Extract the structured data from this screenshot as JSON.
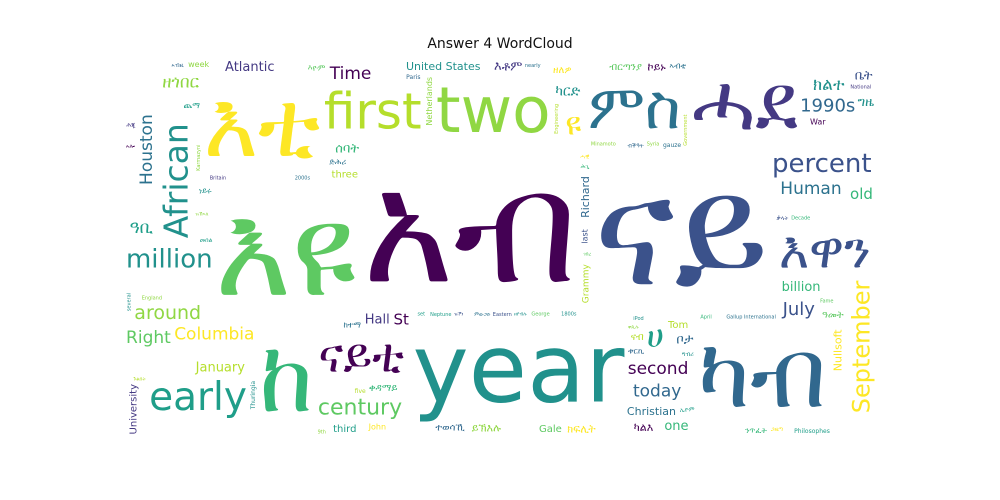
{
  "chart_data": {
    "type": "wordcloud",
    "title": "Answer 4 WordCloud",
    "colors": [
      "#440154",
      "#3b528b",
      "#21918c",
      "#5ec962",
      "#fde725",
      "#31688e",
      "#35b779",
      "#90d743",
      "#443983",
      "#2c728e",
      "#1f9e89",
      "#b5de2b"
    ],
    "words": [
      {
        "text": "አብ",
        "weight": 100,
        "vertical": false
      },
      {
        "text": "ናይ",
        "weight": 98,
        "vertical": false
      },
      {
        "text": "year",
        "weight": 80,
        "vertical": false
      },
      {
        "text": "እዩ",
        "weight": 82,
        "vertical": false
      },
      {
        "text": "እቲ",
        "weight": 78,
        "vertical": false
      },
      {
        "text": "ካብ",
        "weight": 60,
        "vertical": false
      },
      {
        "text": "ከ",
        "weight": 62,
        "vertical": false
      },
      {
        "text": "two",
        "weight": 52,
        "vertical": false
      },
      {
        "text": "ሓደ",
        "weight": 48,
        "vertical": false
      },
      {
        "text": "ምስ",
        "weight": 50,
        "vertical": false
      },
      {
        "text": "early",
        "weight": 42,
        "vertical": false
      },
      {
        "text": "first",
        "weight": 40,
        "vertical": false
      },
      {
        "text": "ናይቲ",
        "weight": 38,
        "vertical": false
      },
      {
        "text": "እዋን",
        "weight": 30,
        "vertical": false
      },
      {
        "text": "United States",
        "weight": 26,
        "vertical": false
      },
      {
        "text": "century",
        "weight": 22,
        "vertical": false
      },
      {
        "text": "Columbia",
        "weight": 16,
        "vertical": false
      },
      {
        "text": "1990s",
        "weight": 17,
        "vertical": false
      },
      {
        "text": "old",
        "weight": 14,
        "vertical": false
      },
      {
        "text": "around",
        "weight": 18,
        "vertical": false
      },
      {
        "text": "Hall",
        "weight": 15,
        "vertical": false
      },
      {
        "text": "Houston",
        "weight": 16,
        "vertical": true
      },
      {
        "text": "ጨማ",
        "weight": 12,
        "vertical": false
      },
      {
        "text": "January",
        "weight": 16,
        "vertical": false
      },
      {
        "text": "second",
        "weight": 16,
        "vertical": false
      },
      {
        "text": "percent",
        "weight": 19,
        "vertical": false
      },
      {
        "text": "African",
        "weight": 18,
        "vertical": true
      },
      {
        "text": "Gale",
        "weight": 15,
        "vertical": false
      },
      {
        "text": "Nullsoft",
        "weight": 14,
        "vertical": true
      },
      {
        "text": "today",
        "weight": 16,
        "vertical": false
      },
      {
        "text": "billion",
        "weight": 15,
        "vertical": false
      },
      {
        "text": "Netherlands",
        "weight": 13,
        "vertical": true
      },
      {
        "text": "University",
        "weight": 15,
        "vertical": true
      },
      {
        "text": "Human",
        "weight": 16,
        "vertical": false
      },
      {
        "text": "Philosophes",
        "weight": 11,
        "vertical": false
      },
      {
        "text": "Tom",
        "weight": 15,
        "vertical": false
      },
      {
        "text": "Time",
        "weight": 16,
        "vertical": false
      },
      {
        "text": "July",
        "weight": 17,
        "vertical": false
      },
      {
        "text": "million",
        "weight": 19,
        "vertical": false
      },
      {
        "text": "Right",
        "weight": 16,
        "vertical": false
      },
      {
        "text": "September",
        "weight": 17,
        "vertical": true
      },
      {
        "text": "Richard",
        "weight": 14,
        "vertical": true
      },
      {
        "text": "one",
        "weight": 15,
        "vertical": false
      },
      {
        "text": "week",
        "weight": 15,
        "vertical": false
      },
      {
        "text": "Atlantic",
        "weight": 15,
        "vertical": false
      },
      {
        "text": "Christian",
        "weight": 18,
        "vertical": false
      },
      {
        "text": "third",
        "weight": 15,
        "vertical": false
      },
      {
        "text": "three",
        "weight": 16,
        "vertical": false
      },
      {
        "text": "St",
        "weight": 14,
        "vertical": false
      },
      {
        "text": "last",
        "weight": 12,
        "vertical": true
      },
      {
        "text": "Leningrad",
        "weight": 9,
        "vertical": false
      },
      {
        "text": "George",
        "weight": 9,
        "vertical": false
      },
      {
        "text": "Convention",
        "weight": 11,
        "vertical": false
      },
      {
        "text": "Paris",
        "weight": 11,
        "vertical": false
      },
      {
        "text": "Tuvaluans",
        "weight": 11,
        "vertical": false
      },
      {
        "text": "Minamoto",
        "weight": 10,
        "vertical": false
      },
      {
        "text": "Adidas",
        "weight": 10,
        "vertical": false
      },
      {
        "text": "nearly",
        "weight": 10,
        "vertical": false
      },
      {
        "text": "Europe",
        "weight": 10,
        "vertical": false
      },
      {
        "text": "Grammy",
        "weight": 10,
        "vertical": true
      },
      {
        "text": "Whitehead",
        "weight": 9,
        "vertical": false
      },
      {
        "text": "Eastern",
        "weight": 10,
        "vertical": false
      },
      {
        "text": "1800s",
        "weight": 10,
        "vertical": false
      },
      {
        "text": "Fame",
        "weight": 10,
        "vertical": false
      },
      {
        "text": "John",
        "weight": 9,
        "vertical": false
      },
      {
        "text": "antenna",
        "weight": 9,
        "vertical": false
      },
      {
        "text": "Decade",
        "weight": 9,
        "vertical": false
      },
      {
        "text": "Syria",
        "weight": 10,
        "vertical": false
      },
      {
        "text": "scagliola",
        "weight": 8,
        "vertical": false
      },
      {
        "text": "gauze",
        "weight": 9,
        "vertical": false
      },
      {
        "text": "Neptune",
        "weight": 9,
        "vertical": false
      },
      {
        "text": "Government",
        "weight": 7,
        "vertical": true
      },
      {
        "text": "organization",
        "weight": 8,
        "vertical": false
      },
      {
        "text": "Conkling",
        "weight": 8,
        "vertical": false
      },
      {
        "text": "Thuringia",
        "weight": 9,
        "vertical": true
      },
      {
        "text": "Louisiana",
        "weight": 7,
        "vertical": false
      },
      {
        "text": "Hanks",
        "weight": 8,
        "vertical": false
      },
      {
        "text": "School",
        "weight": 7,
        "vertical": false
      },
      {
        "text": "April",
        "weight": 8,
        "vertical": false
      },
      {
        "text": "9th",
        "weight": 8,
        "vertical": false
      },
      {
        "text": "National",
        "weight": 8,
        "vertical": false
      },
      {
        "text": "2000s",
        "weight": 8,
        "vertical": false
      },
      {
        "text": "four",
        "weight": 7,
        "vertical": false
      },
      {
        "text": "five",
        "weight": 8,
        "vertical": false
      },
      {
        "text": "War",
        "weight": 8,
        "vertical": false
      },
      {
        "text": "end",
        "weight": 8,
        "vertical": false
      },
      {
        "text": "iPod",
        "weight": 8,
        "vertical": false
      },
      {
        "text": "predation",
        "weight": 7,
        "vertical": true
      },
      {
        "text": "david pa",
        "weight": 6,
        "vertical": false
      },
      {
        "text": "Bertrand Delanoë",
        "weight": 5,
        "vertical": false
      },
      {
        "text": "Lani Guinier",
        "weight": 5,
        "vertical": false
      },
      {
        "text": "Karmazyni",
        "weight": 6,
        "vertical": true
      },
      {
        "text": "19th",
        "weight": 7,
        "vertical": true
      },
      {
        "text": "Gallup International",
        "weight": 5,
        "vertical": false
      },
      {
        "text": "Zakaria Moheddin",
        "weight": 5,
        "vertical": true
      },
      {
        "text": "Engineering",
        "weight": 5,
        "vertical": true
      },
      {
        "text": "Raphael Lemkin",
        "weight": 5,
        "vertical": false
      },
      {
        "text": "March",
        "weight": 6,
        "vertical": false
      },
      {
        "text": "several",
        "weight": 6,
        "vertical": true
      },
      {
        "text": "months",
        "weight": 6,
        "vertical": false
      },
      {
        "text": "Twenty",
        "weight": 6,
        "vertical": false
      },
      {
        "text": "Underpinning",
        "weight": 6,
        "vertical": false
      },
      {
        "text": "Soopoolitse",
        "weight": 6,
        "vertical": false
      },
      {
        "text": "England",
        "weight": 6,
        "vertical": false
      },
      {
        "text": "Britain",
        "weight": 5,
        "vertical": false
      },
      {
        "text": "morning",
        "weight": 5,
        "vertical": false
      },
      {
        "text": "set",
        "weight": 5,
        "vertical": false
      },
      {
        "text": "Os",
        "weight": 6,
        "vertical": false
      },
      {
        "text": "18th",
        "weight": 5,
        "vertical": false
      },
      {
        "text": "FSN",
        "weight": 6,
        "vertical": false
      },
      {
        "text": "ክልተ",
        "weight": 16,
        "vertical": false
      },
      {
        "text": "ብርጣንያ",
        "weight": 15,
        "vertical": false
      },
      {
        "text": "ዘለዎ",
        "weight": 15,
        "vertical": false
      },
      {
        "text": "ተወሳኺ",
        "weight": 16,
        "vertical": false
      },
      {
        "text": "ቀዳማይ",
        "weight": 15,
        "vertical": false
      },
      {
        "text": "ዘጎበር",
        "weight": 15,
        "vertical": false
      },
      {
        "text": "ከምኡውን",
        "weight": 15,
        "vertical": false
      },
      {
        "text": "ድሕሪ",
        "weight": 14,
        "vertical": false
      },
      {
        "text": "ዓቢ",
        "weight": 16,
        "vertical": false
      },
      {
        "text": "ቻይና",
        "weight": 14,
        "vertical": false
      },
      {
        "text": "ካልእ",
        "weight": 14,
        "vertical": false
      },
      {
        "text": "ቤት",
        "weight": 15,
        "vertical": false
      },
      {
        "text": "ግዜ",
        "weight": 15,
        "vertical": false
      },
      {
        "text": "ዓመት",
        "weight": 15,
        "vertical": false
      },
      {
        "text": "ዩ",
        "weight": 17,
        "vertical": false
      },
      {
        "text": "ቦታ",
        "weight": 16,
        "vertical": false
      },
      {
        "text": "ሰባት",
        "weight": 15,
        "vertical": false
      },
      {
        "text": "ይኽእሉ",
        "weight": 14,
        "vertical": false
      },
      {
        "text": "እቶም",
        "weight": 16,
        "vertical": false
      },
      {
        "text": "ከተማ",
        "weight": 12,
        "vertical": false
      },
      {
        "text": "ሀ",
        "weight": 18,
        "vertical": false
      },
      {
        "text": "ናብ",
        "weight": 15,
        "vertical": false
      },
      {
        "text": "ኮይኑ",
        "weight": 14,
        "vertical": false
      },
      {
        "text": "ቃላት",
        "weight": 14,
        "vertical": false
      },
      {
        "text": "ነይሩ",
        "weight": 14,
        "vertical": false
      },
      {
        "text": "እዮም",
        "weight": 14,
        "vertical": false
      },
      {
        "text": "ክፍሊት",
        "weight": 14,
        "vertical": false
      },
      {
        "text": "ብቕዓት",
        "weight": 9,
        "vertical": false
      },
      {
        "text": "ንጥፈት",
        "weight": 9,
        "vertical": false
      },
      {
        "text": "ዘርዕ",
        "weight": 8,
        "vertical": false
      },
      {
        "text": "ምምስራት",
        "weight": 8,
        "vertical": false
      },
      {
        "text": "ኣብቲ",
        "weight": 9,
        "vertical": false
      },
      {
        "text": "መበል",
        "weight": 9,
        "vertical": false
      },
      {
        "text": "ምእንቲ",
        "weight": 9,
        "vertical": false
      },
      {
        "text": "ኣሎ",
        "weight": 8,
        "vertical": false
      },
      {
        "text": "ዝኾነ",
        "weight": 8,
        "vertical": false
      },
      {
        "text": "ካርድ",
        "weight": 8,
        "vertical": false
      },
      {
        "text": "ገበረ",
        "weight": 8,
        "vertical": false
      },
      {
        "text": "ሓዊ",
        "weight": 8,
        "vertical": false
      },
      {
        "text": "ቱርኪ",
        "weight": 9,
        "vertical": false
      },
      {
        "text": "ትሕቲ",
        "weight": 8,
        "vertical": false
      },
      {
        "text": "ዝኸኣለ",
        "weight": 7,
        "vertical": false
      },
      {
        "text": "ምዕራብ",
        "weight": 8,
        "vertical": false
      },
      {
        "text": "ምውጋድ",
        "weight": 8,
        "vertical": false
      },
      {
        "text": "ኣቋቋመ",
        "weight": 8,
        "vertical": false
      },
      {
        "text": "ጉልበት",
        "weight": 8,
        "vertical": false
      },
      {
        "text": "ዳግማይ",
        "weight": 8,
        "vertical": false
      },
      {
        "text": "ፍልጠት",
        "weight": 8,
        "vertical": false
      },
      {
        "text": "ዘየብሉ",
        "weight": 8,
        "vertical": false
      },
      {
        "text": "ውሽጢ",
        "weight": 8,
        "vertical": false
      },
      {
        "text": "ጋዜጣ",
        "weight": 8,
        "vertical": false
      },
      {
        "text": "ኣብዚ",
        "weight": 8,
        "vertical": false
      },
      {
        "text": "ሕጊ",
        "weight": 8,
        "vertical": false
      },
      {
        "text": "ተጻዊቱ",
        "weight": 7,
        "vertical": false
      },
      {
        "text": "ዝርከብ",
        "weight": 7,
        "vertical": false
      },
      {
        "text": "ልዕሊ",
        "weight": 8,
        "vertical": false
      },
      {
        "text": "ኢዮም",
        "weight": 8,
        "vertical": false
      },
      {
        "text": "ኣዋርሕ",
        "weight": 7,
        "vertical": false
      },
      {
        "text": "ኣብዛ",
        "weight": 7,
        "vertical": false
      },
      {
        "text": "ሓድሽ",
        "weight": 8,
        "vertical": false
      },
      {
        "text": "ግብሪ",
        "weight": 7,
        "vertical": false
      },
      {
        "text": "ኣገዳሲ",
        "weight": 7,
        "vertical": false
      },
      {
        "text": "ሃገር",
        "weight": 8,
        "vertical": false
      },
      {
        "text": "መሬት",
        "weight": 7,
        "vertical": false
      },
      {
        "text": "ኣንጻር",
        "weight": 8,
        "vertical": false
      },
      {
        "text": "ቀጺሉ",
        "weight": 7,
        "vertical": false
      },
      {
        "text": "ሕጂ",
        "weight": 7,
        "vertical": false
      },
      {
        "text": "ንዓኣ",
        "weight": 7,
        "vertical": false
      },
      {
        "text": "ክብረት",
        "weight": 7,
        "vertical": false
      },
      {
        "text": "ደቂ",
        "weight": 7,
        "vertical": false
      }
    ]
  }
}
